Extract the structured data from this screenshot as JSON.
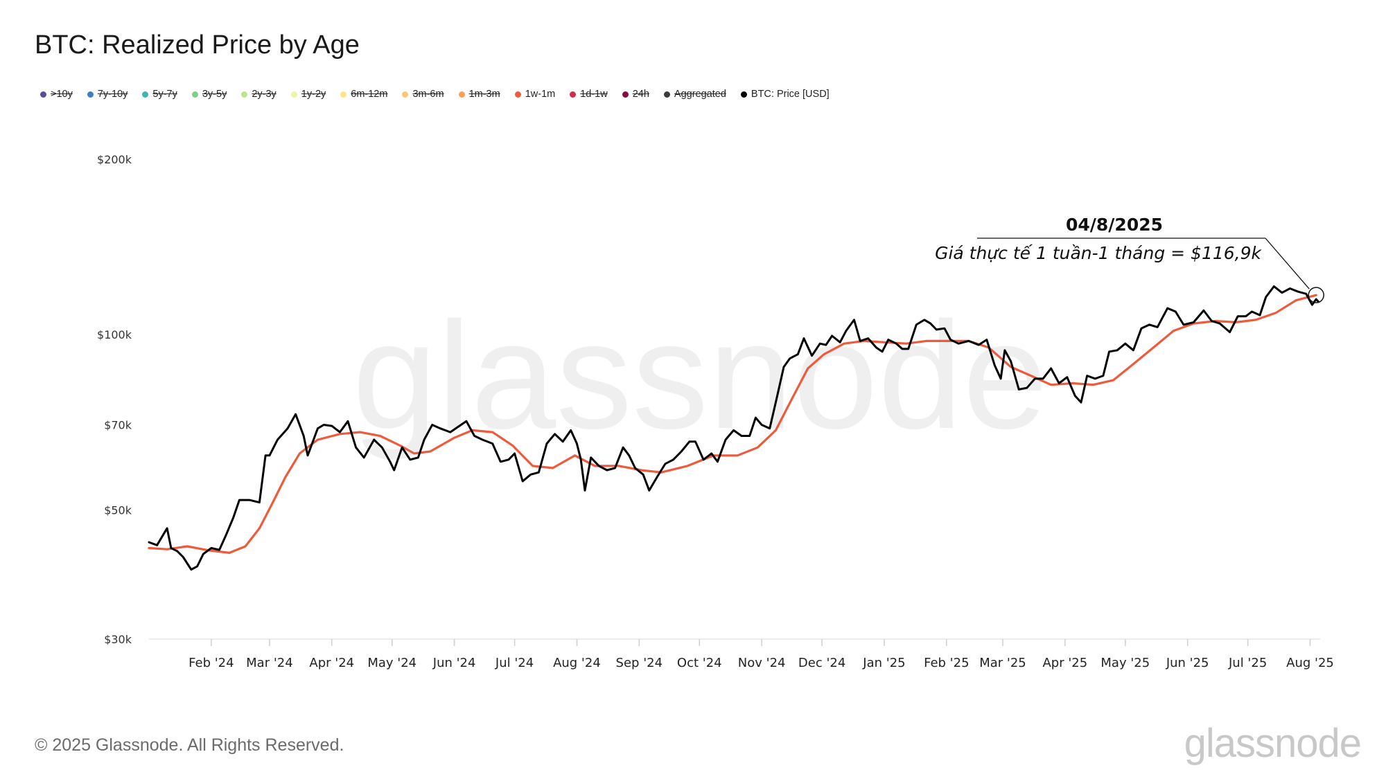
{
  "title": "BTC: Realized Price by Age",
  "legend": [
    {
      "label": ">10y",
      "color": "#5b4c9a",
      "hidden": true
    },
    {
      "label": "7y-10y",
      "color": "#3b7fc4",
      "hidden": true
    },
    {
      "label": "5y-7y",
      "color": "#3db5b0",
      "hidden": true
    },
    {
      "label": "3y-5y",
      "color": "#7dd08a",
      "hidden": true
    },
    {
      "label": "2y-3y",
      "color": "#b9e58c",
      "hidden": true
    },
    {
      "label": "1y-2y",
      "color": "#eef5a0",
      "hidden": true
    },
    {
      "label": "6m-12m",
      "color": "#fbe58b",
      "hidden": true
    },
    {
      "label": "3m-6m",
      "color": "#fbc877",
      "hidden": true
    },
    {
      "label": "1m-3m",
      "color": "#f8a05a",
      "hidden": true
    },
    {
      "label": "1w-1m",
      "color": "#ee5a3c",
      "hidden": false
    },
    {
      "label": "1d-1w",
      "color": "#d22b4b",
      "hidden": true
    },
    {
      "label": "24h",
      "color": "#8b0a3e",
      "hidden": true
    },
    {
      "label": "Aggregated",
      "color": "#3a3a3a",
      "hidden": true
    },
    {
      "label": "BTC: Price [USD]",
      "color": "#000000",
      "hidden": false
    }
  ],
  "watermark": "glassnode",
  "footer": "© 2025 Glassnode. All Rights Reserved.",
  "brand": "glassnode",
  "annotation": {
    "date": "04/8/2025",
    "text": "Giá thực tế 1 tuần-1 tháng = $116,9k"
  },
  "colors": {
    "price": "#000000",
    "realized_1w_1m": "#ee5a3c",
    "axis": "#e6e6e6"
  },
  "chart_data": {
    "type": "line",
    "title": "BTC: Realized Price by Age",
    "yscale": "log",
    "ylim": [
      30000,
      200000
    ],
    "y_ticks": [
      {
        "value": 200000,
        "label": "$200k"
      },
      {
        "value": 100000,
        "label": "$100k"
      },
      {
        "value": 70000,
        "label": "$70k"
      },
      {
        "value": 50000,
        "label": "$50k"
      },
      {
        "value": 30000,
        "label": "$30k"
      }
    ],
    "xlim": [
      "2024-01-01",
      "2025-08-06"
    ],
    "x_ticks": [
      {
        "date": "2024-02-01",
        "label": "Feb '24"
      },
      {
        "date": "2024-03-01",
        "label": "Mar '24"
      },
      {
        "date": "2024-04-01",
        "label": "Apr '24"
      },
      {
        "date": "2024-05-01",
        "label": "May '24"
      },
      {
        "date": "2024-06-01",
        "label": "Jun '24"
      },
      {
        "date": "2024-07-01",
        "label": "Jul '24"
      },
      {
        "date": "2024-08-01",
        "label": "Aug '24"
      },
      {
        "date": "2024-09-01",
        "label": "Sep '24"
      },
      {
        "date": "2024-10-01",
        "label": "Oct '24"
      },
      {
        "date": "2024-11-01",
        "label": "Nov '24"
      },
      {
        "date": "2024-12-01",
        "label": "Dec '24"
      },
      {
        "date": "2025-01-01",
        "label": "Jan '25"
      },
      {
        "date": "2025-02-01",
        "label": "Feb '25"
      },
      {
        "date": "2025-03-01",
        "label": "Mar '25"
      },
      {
        "date": "2025-04-01",
        "label": "Apr '25"
      },
      {
        "date": "2025-05-01",
        "label": "May '25"
      },
      {
        "date": "2025-06-01",
        "label": "Jun '25"
      },
      {
        "date": "2025-07-01",
        "label": "Jul '25"
      },
      {
        "date": "2025-08-01",
        "label": "Aug '25"
      }
    ],
    "series": [
      {
        "name": "BTC: Price [USD]",
        "color": "#000000",
        "points": [
          [
            "2024-01-01",
            44000
          ],
          [
            "2024-01-05",
            43500
          ],
          [
            "2024-01-10",
            46500
          ],
          [
            "2024-01-12",
            43000
          ],
          [
            "2024-01-15",
            42500
          ],
          [
            "2024-01-18",
            41500
          ],
          [
            "2024-01-22",
            39500
          ],
          [
            "2024-01-25",
            40000
          ],
          [
            "2024-01-28",
            42000
          ],
          [
            "2024-02-01",
            43000
          ],
          [
            "2024-02-05",
            42700
          ],
          [
            "2024-02-08",
            45000
          ],
          [
            "2024-02-12",
            48500
          ],
          [
            "2024-02-15",
            52000
          ],
          [
            "2024-02-20",
            52000
          ],
          [
            "2024-02-25",
            51500
          ],
          [
            "2024-02-28",
            62000
          ],
          [
            "2024-03-01",
            62000
          ],
          [
            "2024-03-05",
            66000
          ],
          [
            "2024-03-10",
            69000
          ],
          [
            "2024-03-14",
            73000
          ],
          [
            "2024-03-18",
            67000
          ],
          [
            "2024-03-20",
            62000
          ],
          [
            "2024-03-25",
            69000
          ],
          [
            "2024-03-28",
            70000
          ],
          [
            "2024-04-01",
            69700
          ],
          [
            "2024-04-05",
            68000
          ],
          [
            "2024-04-09",
            71000
          ],
          [
            "2024-04-13",
            64000
          ],
          [
            "2024-04-17",
            61500
          ],
          [
            "2024-04-22",
            66000
          ],
          [
            "2024-04-26",
            64000
          ],
          [
            "2024-04-30",
            60500
          ],
          [
            "2024-05-02",
            58500
          ],
          [
            "2024-05-06",
            64000
          ],
          [
            "2024-05-10",
            61000
          ],
          [
            "2024-05-14",
            61500
          ],
          [
            "2024-05-17",
            66000
          ],
          [
            "2024-05-21",
            70000
          ],
          [
            "2024-05-25",
            69000
          ],
          [
            "2024-05-30",
            68000
          ],
          [
            "2024-06-03",
            69500
          ],
          [
            "2024-06-07",
            71000
          ],
          [
            "2024-06-11",
            67000
          ],
          [
            "2024-06-15",
            66000
          ],
          [
            "2024-06-20",
            65000
          ],
          [
            "2024-06-24",
            60500
          ],
          [
            "2024-06-28",
            61000
          ],
          [
            "2024-07-01",
            62500
          ],
          [
            "2024-07-05",
            56000
          ],
          [
            "2024-07-09",
            57500
          ],
          [
            "2024-07-13",
            58000
          ],
          [
            "2024-07-17",
            65000
          ],
          [
            "2024-07-21",
            67500
          ],
          [
            "2024-07-25",
            65500
          ],
          [
            "2024-07-29",
            68500
          ],
          [
            "2024-08-01",
            65000
          ],
          [
            "2024-08-03",
            61000
          ],
          [
            "2024-08-05",
            54000
          ],
          [
            "2024-08-08",
            61500
          ],
          [
            "2024-08-12",
            59500
          ],
          [
            "2024-08-16",
            58500
          ],
          [
            "2024-08-20",
            59000
          ],
          [
            "2024-08-24",
            64000
          ],
          [
            "2024-08-27",
            62000
          ],
          [
            "2024-08-30",
            59000
          ],
          [
            "2024-09-03",
            57500
          ],
          [
            "2024-09-06",
            54000
          ],
          [
            "2024-09-10",
            57000
          ],
          [
            "2024-09-14",
            60000
          ],
          [
            "2024-09-18",
            61000
          ],
          [
            "2024-09-22",
            63000
          ],
          [
            "2024-09-26",
            65500
          ],
          [
            "2024-09-29",
            65500
          ],
          [
            "2024-10-03",
            61000
          ],
          [
            "2024-10-07",
            62500
          ],
          [
            "2024-10-10",
            60500
          ],
          [
            "2024-10-14",
            66000
          ],
          [
            "2024-10-18",
            68500
          ],
          [
            "2024-10-22",
            67000
          ],
          [
            "2024-10-26",
            67000
          ],
          [
            "2024-10-29",
            72000
          ],
          [
            "2024-11-01",
            70000
          ],
          [
            "2024-11-05",
            69000
          ],
          [
            "2024-11-08",
            76500
          ],
          [
            "2024-11-12",
            88000
          ],
          [
            "2024-11-15",
            91000
          ],
          [
            "2024-11-19",
            92500
          ],
          [
            "2024-11-22",
            98500
          ],
          [
            "2024-11-26",
            92000
          ],
          [
            "2024-11-30",
            96500
          ],
          [
            "2024-12-03",
            96000
          ],
          [
            "2024-12-06",
            99500
          ],
          [
            "2024-12-10",
            97000
          ],
          [
            "2024-12-13",
            101500
          ],
          [
            "2024-12-17",
            106000
          ],
          [
            "2024-12-20",
            97500
          ],
          [
            "2024-12-24",
            98500
          ],
          [
            "2024-12-28",
            95000
          ],
          [
            "2024-12-31",
            93500
          ],
          [
            "2025-01-03",
            98000
          ],
          [
            "2025-01-07",
            96500
          ],
          [
            "2025-01-10",
            94500
          ],
          [
            "2025-01-13",
            94500
          ],
          [
            "2025-01-17",
            104000
          ],
          [
            "2025-01-21",
            106000
          ],
          [
            "2025-01-24",
            104500
          ],
          [
            "2025-01-27",
            102000
          ],
          [
            "2025-01-31",
            102500
          ],
          [
            "2025-02-03",
            98000
          ],
          [
            "2025-02-07",
            96500
          ],
          [
            "2025-02-12",
            97500
          ],
          [
            "2025-02-17",
            96000
          ],
          [
            "2025-02-21",
            98000
          ],
          [
            "2025-02-25",
            88500
          ],
          [
            "2025-02-28",
            84000
          ],
          [
            "2025-03-02",
            94000
          ],
          [
            "2025-03-05",
            90000
          ],
          [
            "2025-03-09",
            80500
          ],
          [
            "2025-03-13",
            81000
          ],
          [
            "2025-03-17",
            84000
          ],
          [
            "2025-03-21",
            84000
          ],
          [
            "2025-03-25",
            87500
          ],
          [
            "2025-03-29",
            82500
          ],
          [
            "2025-04-02",
            84500
          ],
          [
            "2025-04-06",
            78500
          ],
          [
            "2025-04-09",
            76500
          ],
          [
            "2025-04-12",
            85000
          ],
          [
            "2025-04-16",
            84000
          ],
          [
            "2025-04-20",
            85000
          ],
          [
            "2025-04-23",
            93500
          ],
          [
            "2025-04-27",
            94000
          ],
          [
            "2025-05-01",
            96500
          ],
          [
            "2025-05-05",
            94000
          ],
          [
            "2025-05-09",
            102500
          ],
          [
            "2025-05-13",
            104000
          ],
          [
            "2025-05-17",
            103000
          ],
          [
            "2025-05-22",
            111000
          ],
          [
            "2025-05-26",
            109500
          ],
          [
            "2025-05-30",
            104000
          ],
          [
            "2025-06-04",
            105000
          ],
          [
            "2025-06-09",
            110000
          ],
          [
            "2025-06-13",
            105500
          ],
          [
            "2025-06-17",
            104500
          ],
          [
            "2025-06-22",
            101000
          ],
          [
            "2025-06-26",
            107500
          ],
          [
            "2025-06-30",
            107500
          ],
          [
            "2025-07-03",
            109500
          ],
          [
            "2025-07-07",
            108000
          ],
          [
            "2025-07-10",
            116000
          ],
          [
            "2025-07-14",
            121000
          ],
          [
            "2025-07-18",
            118000
          ],
          [
            "2025-07-22",
            120000
          ],
          [
            "2025-07-26",
            118500
          ],
          [
            "2025-07-30",
            117500
          ],
          [
            "2025-08-02",
            112500
          ],
          [
            "2025-08-04",
            115000
          ],
          [
            "2025-08-05",
            114000
          ]
        ]
      },
      {
        "name": "1w-1m",
        "color": "#ee5a3c",
        "points": [
          [
            "2024-01-01",
            43000
          ],
          [
            "2024-01-10",
            42800
          ],
          [
            "2024-01-20",
            43300
          ],
          [
            "2024-01-31",
            42600
          ],
          [
            "2024-02-10",
            42200
          ],
          [
            "2024-02-18",
            43300
          ],
          [
            "2024-02-25",
            46500
          ],
          [
            "2024-03-02",
            51000
          ],
          [
            "2024-03-09",
            57000
          ],
          [
            "2024-03-16",
            62500
          ],
          [
            "2024-03-25",
            66000
          ],
          [
            "2024-04-05",
            67500
          ],
          [
            "2024-04-15",
            68000
          ],
          [
            "2024-04-25",
            67000
          ],
          [
            "2024-05-05",
            64500
          ],
          [
            "2024-05-12",
            62500
          ],
          [
            "2024-05-20",
            63000
          ],
          [
            "2024-06-01",
            66500
          ],
          [
            "2024-06-10",
            68500
          ],
          [
            "2024-06-20",
            68000
          ],
          [
            "2024-06-30",
            64500
          ],
          [
            "2024-07-10",
            59500
          ],
          [
            "2024-07-20",
            59000
          ],
          [
            "2024-07-31",
            62000
          ],
          [
            "2024-08-10",
            59500
          ],
          [
            "2024-08-22",
            59500
          ],
          [
            "2024-09-02",
            58500
          ],
          [
            "2024-09-12",
            58000
          ],
          [
            "2024-09-25",
            59500
          ],
          [
            "2024-10-08",
            62000
          ],
          [
            "2024-10-20",
            62000
          ],
          [
            "2024-10-30",
            64000
          ],
          [
            "2024-11-08",
            68500
          ],
          [
            "2024-11-16",
            77500
          ],
          [
            "2024-11-24",
            87500
          ],
          [
            "2024-12-02",
            92500
          ],
          [
            "2024-12-12",
            96500
          ],
          [
            "2024-12-22",
            97500
          ],
          [
            "2025-01-01",
            97000
          ],
          [
            "2025-01-12",
            96500
          ],
          [
            "2025-01-22",
            97500
          ],
          [
            "2025-02-02",
            97500
          ],
          [
            "2025-02-12",
            97500
          ],
          [
            "2025-02-22",
            95000
          ],
          [
            "2025-03-05",
            88000
          ],
          [
            "2025-03-15",
            85000
          ],
          [
            "2025-03-25",
            82000
          ],
          [
            "2025-04-05",
            82500
          ],
          [
            "2025-04-15",
            82000
          ],
          [
            "2025-04-25",
            83500
          ],
          [
            "2025-05-05",
            89000
          ],
          [
            "2025-05-15",
            95000
          ],
          [
            "2025-05-25",
            101500
          ],
          [
            "2025-06-04",
            104500
          ],
          [
            "2025-06-15",
            105500
          ],
          [
            "2025-06-25",
            105000
          ],
          [
            "2025-07-05",
            106000
          ],
          [
            "2025-07-15",
            109000
          ],
          [
            "2025-07-25",
            114500
          ],
          [
            "2025-08-04",
            116900
          ]
        ]
      }
    ]
  }
}
